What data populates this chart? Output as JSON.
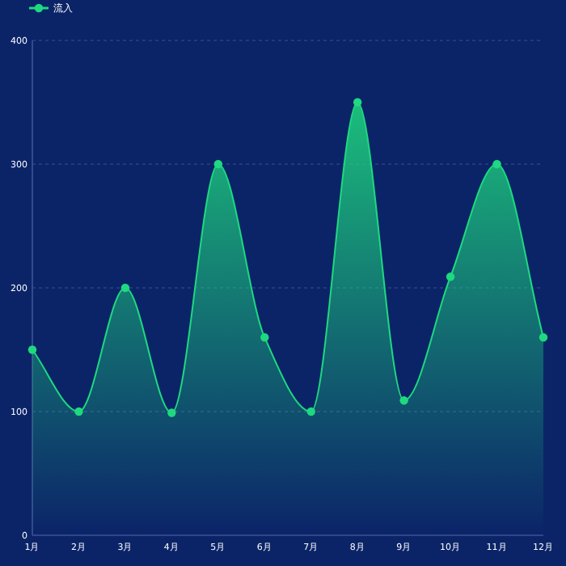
{
  "chart_data": {
    "type": "area",
    "categories": [
      "1月",
      "2月",
      "3月",
      "4月",
      "5月",
      "6月",
      "7月",
      "8月",
      "9月",
      "10月",
      "11月",
      "12月"
    ],
    "series": [
      {
        "name": "流入",
        "color": "#1ed97f",
        "values": [
          150,
          100,
          200,
          99,
          300,
          160,
          100,
          350,
          109,
          209,
          300,
          160
        ]
      }
    ],
    "ylim": [
      0,
      400
    ],
    "yticks": [
      0,
      100,
      200,
      300,
      400
    ],
    "grid": "y",
    "legend": "top left",
    "marker": "circle"
  }
}
